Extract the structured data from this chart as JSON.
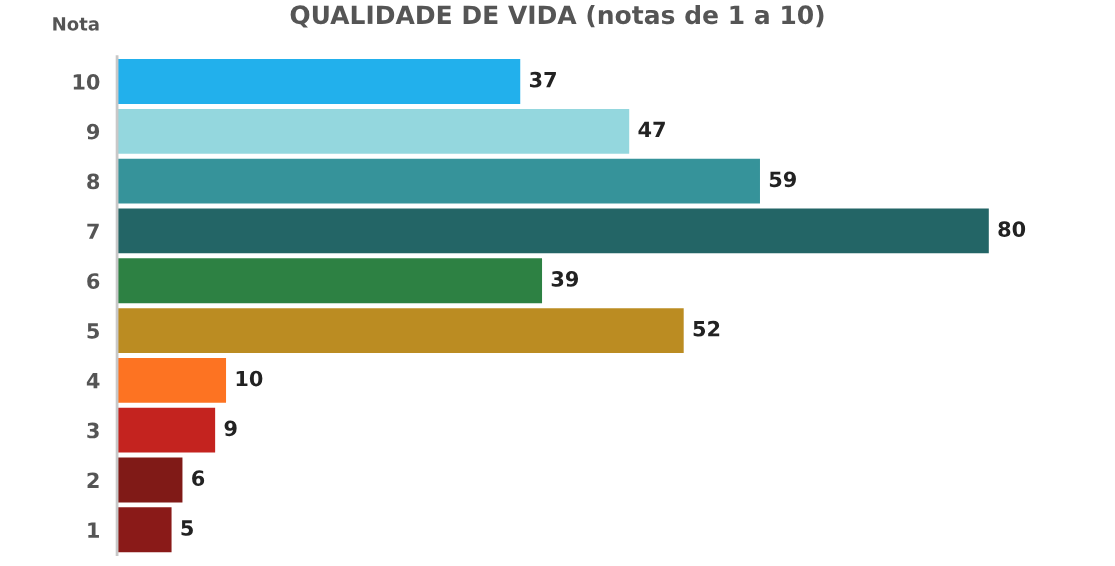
{
  "chart_data": {
    "type": "bar",
    "orientation": "horizontal",
    "title": "QUALIDADE DE VIDA (notas de 1 a 10)",
    "ylabel": "Nota",
    "categories": [
      "10",
      "9",
      "8",
      "7",
      "6",
      "5",
      "4",
      "3",
      "2",
      "1"
    ],
    "values": [
      37,
      47,
      59,
      80,
      39,
      52,
      10,
      9,
      6,
      5
    ],
    "colors": [
      "#22b0ec",
      "#94d7de",
      "#36939a",
      "#236566",
      "#2d8143",
      "#bb8c22",
      "#fd7322",
      "#c4231f",
      "#801a17",
      "#8a1a18"
    ],
    "data_labels": true,
    "grid": false,
    "legend": false
  }
}
